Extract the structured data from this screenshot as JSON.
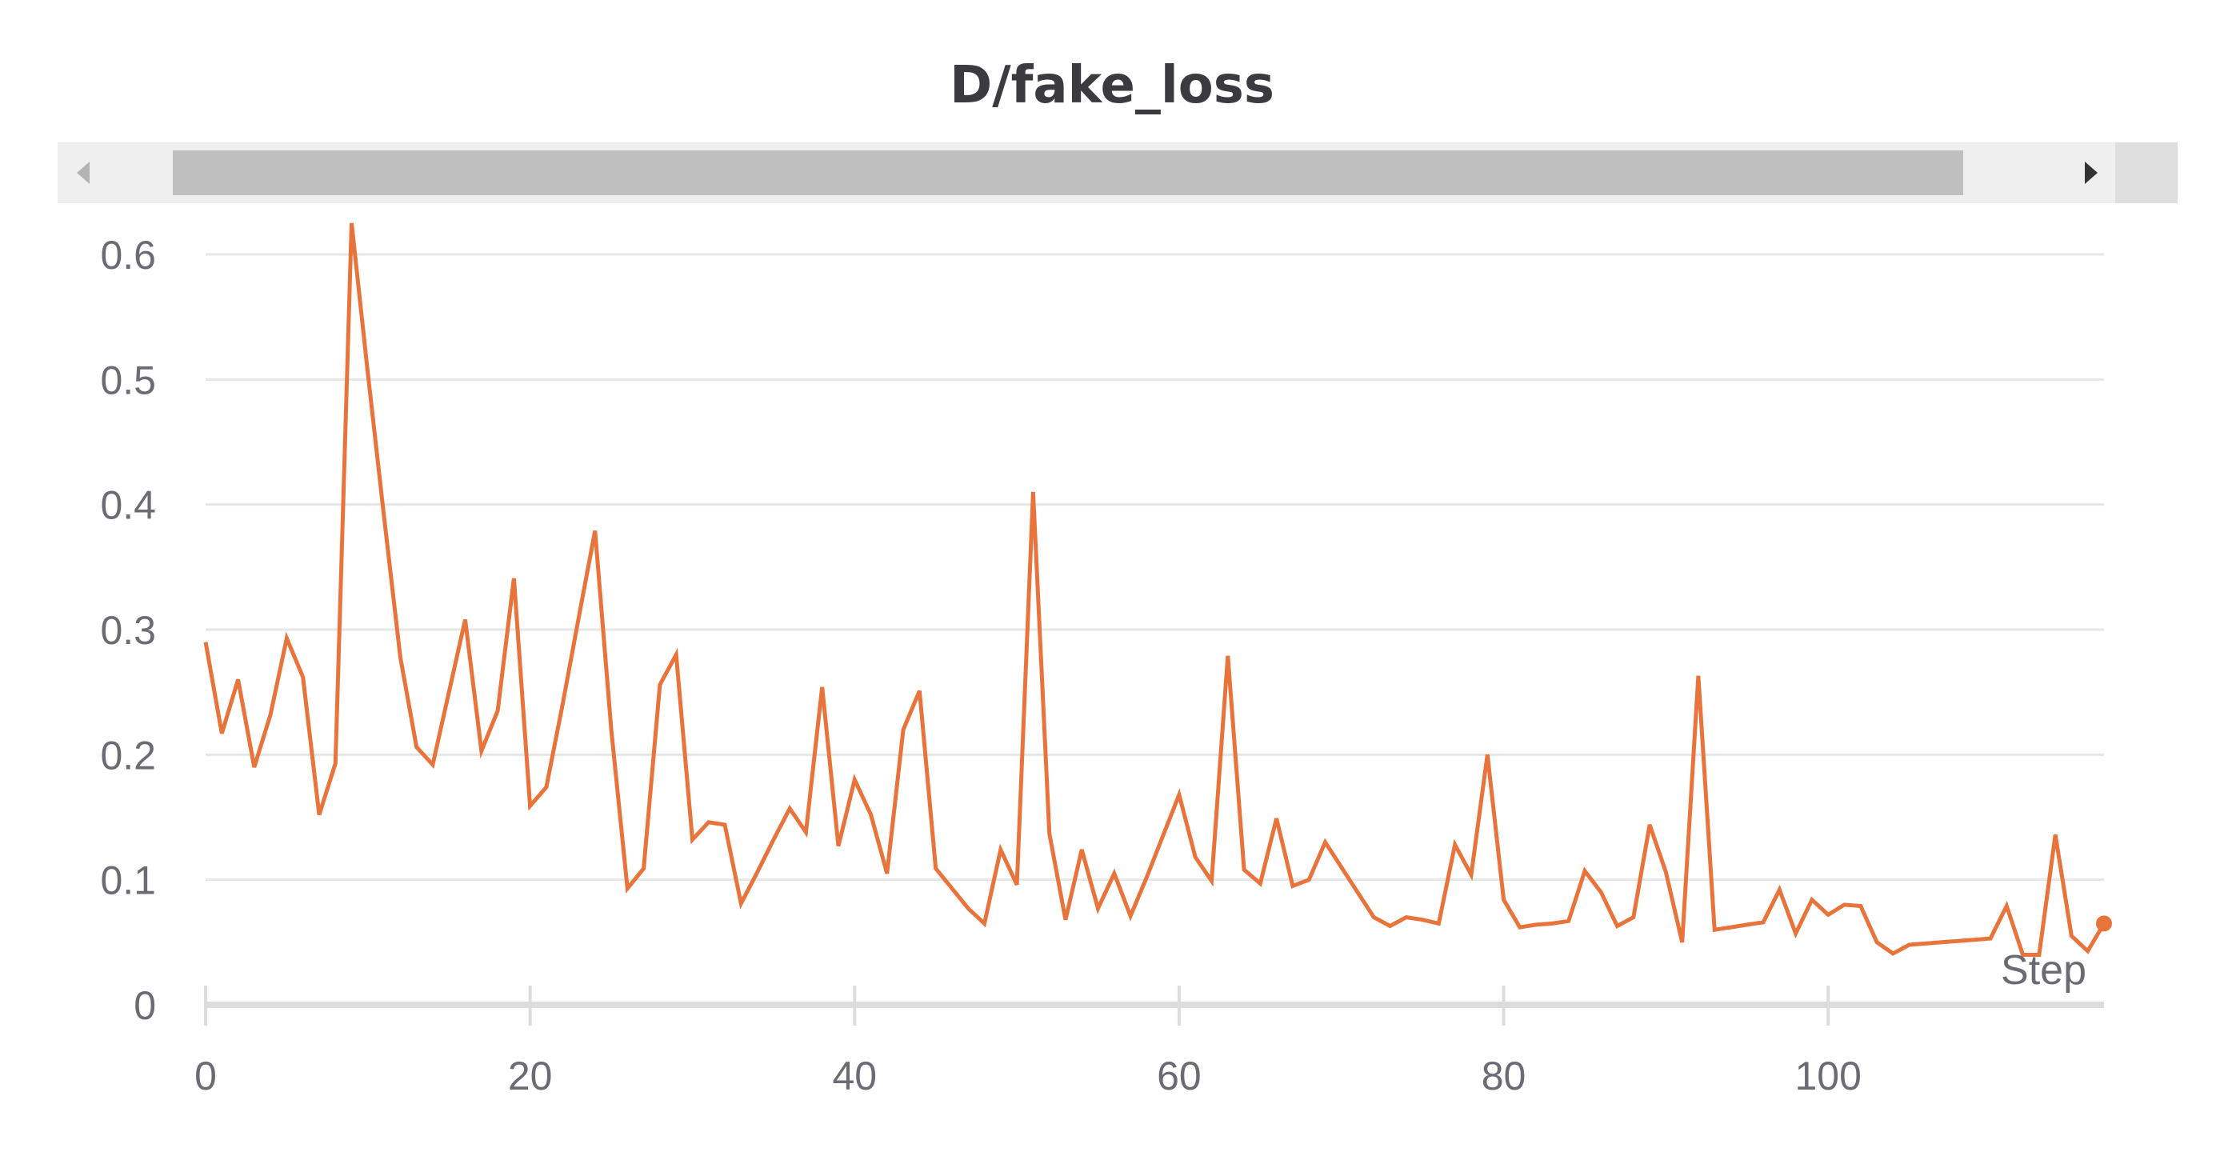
{
  "chart_data": {
    "type": "line",
    "title": "D/fake_loss",
    "xlabel": "Step",
    "ylabel": "",
    "xlim": [
      0,
      117
    ],
    "ylim": [
      0,
      0.6
    ],
    "x_ticks": [
      "0",
      "20",
      "40",
      "60",
      "80",
      "100"
    ],
    "y_ticks": [
      "0",
      "0.1",
      "0.2",
      "0.3",
      "0.4",
      "0.5",
      "0.6"
    ],
    "grid": true,
    "legend": "none",
    "line_color": "#e8743b",
    "series": [
      {
        "x": [
          0,
          1,
          2,
          3,
          4,
          5,
          6,
          7,
          8,
          9,
          10,
          11,
          12,
          13,
          14,
          15,
          16,
          17,
          18,
          19,
          20,
          21,
          22,
          23,
          24,
          25,
          26,
          27,
          28,
          29,
          30,
          31,
          32,
          33,
          34,
          35,
          36,
          37,
          38,
          39,
          40,
          41,
          42,
          43,
          44,
          45,
          46,
          47,
          48,
          49,
          50,
          51,
          52,
          53,
          54,
          55,
          56,
          57,
          58,
          59,
          60,
          61,
          62,
          63,
          64,
          65,
          66,
          67,
          68,
          69,
          70,
          71,
          72,
          73,
          74,
          75,
          76,
          77,
          78,
          79,
          80,
          81,
          82,
          83,
          84,
          85,
          86,
          87,
          88,
          89,
          90,
          91,
          92,
          93,
          94,
          95,
          96,
          97,
          98,
          99,
          100,
          101,
          102,
          103,
          104,
          105,
          106,
          107,
          108,
          109,
          110,
          111,
          112,
          113,
          114,
          115,
          116,
          117
        ],
        "y": [
          0.29,
          0.217,
          0.26,
          0.19,
          0.232,
          0.293,
          0.262,
          0.152,
          0.193,
          0.625,
          0.505,
          0.39,
          0.278,
          0.206,
          0.192,
          0.25,
          0.308,
          0.203,
          0.235,
          0.341,
          0.159,
          0.174,
          0.24,
          0.31,
          0.379,
          0.22,
          0.093,
          0.109,
          0.256,
          0.28,
          0.132,
          0.146,
          0.144,
          0.081,
          0.106,
          0.132,
          0.157,
          0.138,
          0.254,
          0.127,
          0.18,
          0.152,
          0.105,
          0.22,
          0.251,
          0.109,
          0.093,
          0.077,
          0.065,
          0.124,
          0.096,
          0.41,
          0.137,
          0.068,
          0.124,
          0.077,
          0.105,
          0.071,
          0.102,
          0.135,
          0.168,
          0.118,
          0.099,
          0.279,
          0.108,
          0.097,
          0.149,
          0.095,
          0.1,
          0.13,
          0.11,
          0.09,
          0.07,
          0.063,
          0.07,
          0.068,
          0.065,
          0.128,
          0.104,
          0.2,
          0.084,
          0.062,
          0.064,
          0.065,
          0.067,
          0.107,
          0.09,
          0.063,
          0.07,
          0.144,
          0.106,
          0.05,
          0.263,
          0.06,
          0.062,
          0.064,
          0.066,
          0.092,
          0.057,
          0.084,
          0.072,
          0.08,
          0.079,
          0.05,
          0.041,
          0.048,
          0.049,
          0.05,
          0.051,
          0.052,
          0.053,
          0.079,
          0.04,
          0.04,
          0.136,
          0.055,
          0.043,
          0.065
        ]
      }
    ]
  }
}
